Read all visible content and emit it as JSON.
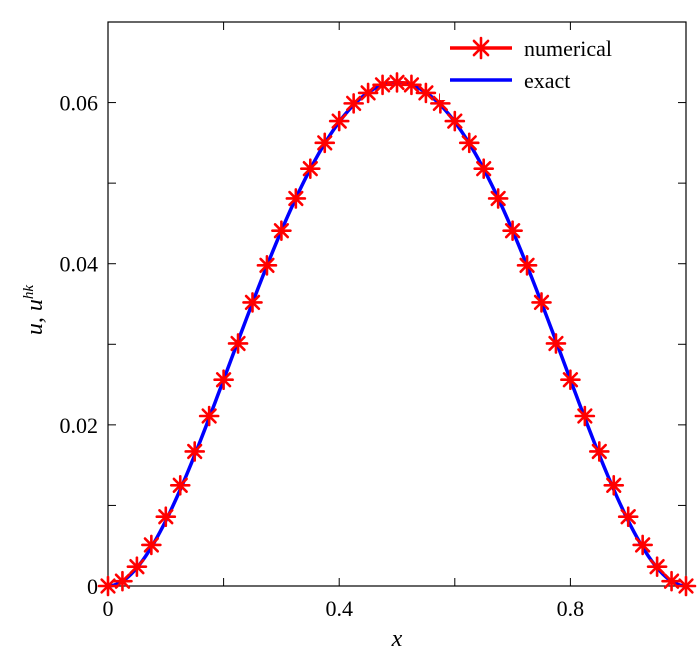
{
  "chart_data": {
    "type": "line",
    "xlabel": "x",
    "ylabel": {
      "main": "u, u",
      "superscript": "hk"
    },
    "xlim": [
      0,
      1
    ],
    "ylim": [
      0,
      0.07
    ],
    "xticks": [
      0,
      0.4,
      0.8
    ],
    "xtick_labels": [
      "0",
      "0.4",
      "0.8"
    ],
    "yticks": [
      0,
      0.02,
      0.04,
      0.06
    ],
    "ytick_labels": [
      "0",
      "0.02",
      "0.04",
      "0.06"
    ],
    "grid": false,
    "legend_position": "top-right",
    "series": [
      {
        "name": "numerical",
        "color": "#ff0000",
        "marker": "asterisk",
        "x": [
          0,
          0.025,
          0.05,
          0.075,
          0.1,
          0.125,
          0.15,
          0.175,
          0.2,
          0.225,
          0.25,
          0.275,
          0.3,
          0.325,
          0.35,
          0.375,
          0.4,
          0.425,
          0.45,
          0.475,
          0.5,
          0.525,
          0.55,
          0.575,
          0.6,
          0.625,
          0.65,
          0.675,
          0.7,
          0.725,
          0.75,
          0.775,
          0.8,
          0.825,
          0.85,
          0.875,
          0.9,
          0.925,
          0.95,
          0.975,
          1.0
        ],
        "y": [
          0,
          0.0006,
          0.0024,
          0.0051,
          0.0086,
          0.0125,
          0.0167,
          0.0211,
          0.0256,
          0.0301,
          0.0352,
          0.0398,
          0.0441,
          0.0481,
          0.0518,
          0.055,
          0.0577,
          0.0599,
          0.0612,
          0.0622,
          0.0625,
          0.0622,
          0.0612,
          0.0599,
          0.0577,
          0.055,
          0.0518,
          0.0481,
          0.0441,
          0.0398,
          0.0352,
          0.0301,
          0.0256,
          0.0211,
          0.0167,
          0.0125,
          0.0086,
          0.0051,
          0.0024,
          0.0006,
          0
        ]
      },
      {
        "name": "exact",
        "color": "#0000ff",
        "marker": "none"
      }
    ]
  }
}
